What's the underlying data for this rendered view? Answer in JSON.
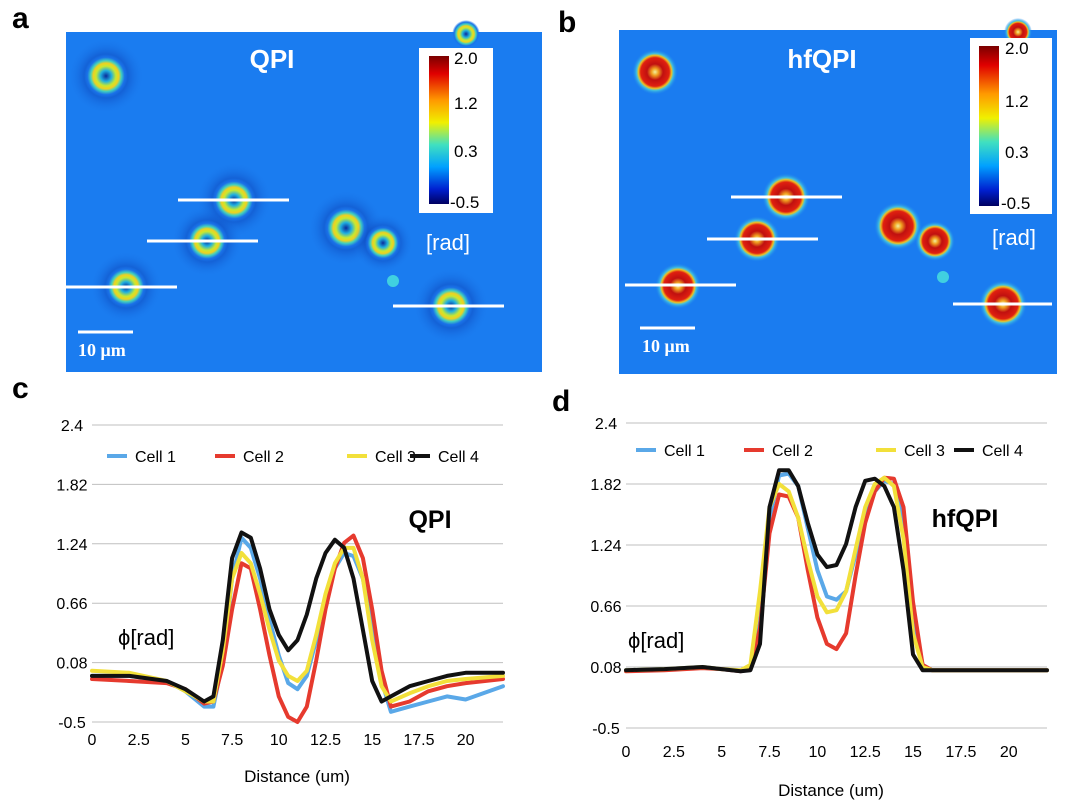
{
  "panels": {
    "a": {
      "letter": "a",
      "title": "QPI",
      "colorbar_ticks": [
        "2.0",
        "1.2",
        "0.3",
        "-0.5"
      ],
      "unit": "[rad]",
      "scalebar_label": "10 μm"
    },
    "b": {
      "letter": "b",
      "title": "hfQPI",
      "colorbar_ticks": [
        "2.0",
        "1.2",
        "0.3",
        "-0.5"
      ],
      "unit": "[rad]",
      "scalebar_label": "10 μm"
    },
    "c": {
      "letter": "c"
    },
    "d": {
      "letter": "d"
    }
  },
  "colors": {
    "background_blue": "#1a7cf0",
    "cell1": "#5aa8e8",
    "cell2": "#e63a2e",
    "cell3": "#f2e03a",
    "cell4": "#111111"
  },
  "chart_data": [
    {
      "type": "line",
      "panel": "c",
      "title": "QPI",
      "xlabel": "Distance (um)",
      "ylabel": "ϕ[rad]",
      "xlim": [
        0,
        22
      ],
      "ylim": [
        -0.5,
        2.4
      ],
      "xticks": [
        "0",
        "2.5",
        "5",
        "7.5",
        "10",
        "12.5",
        "15",
        "17.5",
        "20"
      ],
      "yticks": [
        "2.4",
        "1.82",
        "1.24",
        "0.66",
        "0.08",
        "-0.5"
      ],
      "grid": true,
      "legend": "top",
      "series": [
        {
          "name": "Cell 1",
          "x": [
            0,
            2,
            4,
            5,
            6,
            6.5,
            7,
            7.5,
            8,
            8.5,
            9,
            9.5,
            10,
            10.5,
            11,
            11.5,
            12,
            12.5,
            13,
            13.5,
            14,
            14.5,
            15,
            15.5,
            16,
            17,
            18,
            19,
            20,
            22
          ],
          "y": [
            -0.05,
            -0.05,
            -0.1,
            -0.2,
            -0.35,
            -0.35,
            0.1,
            0.9,
            1.3,
            1.2,
            0.9,
            0.5,
            0.15,
            -0.12,
            -0.18,
            -0.05,
            0.3,
            0.7,
            1.0,
            1.15,
            1.12,
            0.9,
            0.4,
            -0.1,
            -0.4,
            -0.35,
            -0.3,
            -0.25,
            -0.28,
            -0.15
          ]
        },
        {
          "name": "Cell 2",
          "x": [
            0,
            2,
            4,
            5,
            6,
            6.5,
            7,
            7.5,
            8,
            8.5,
            9,
            9.5,
            10,
            10.5,
            11,
            11.5,
            12,
            12.5,
            13,
            13.5,
            14,
            14.5,
            15,
            15.5,
            16,
            17,
            18,
            19,
            20,
            22
          ],
          "y": [
            -0.08,
            -0.1,
            -0.12,
            -0.18,
            -0.32,
            -0.3,
            0.05,
            0.6,
            1.05,
            1.0,
            0.6,
            0.15,
            -0.25,
            -0.45,
            -0.5,
            -0.35,
            0.1,
            0.6,
            1.0,
            1.25,
            1.32,
            1.1,
            0.6,
            0.0,
            -0.35,
            -0.3,
            -0.2,
            -0.15,
            -0.12,
            -0.08
          ]
        },
        {
          "name": "Cell 3",
          "x": [
            0,
            2,
            4,
            5,
            6,
            6.5,
            7,
            7.5,
            8,
            8.5,
            9,
            9.5,
            10,
            10.5,
            11,
            11.5,
            12,
            12.5,
            13,
            13.5,
            14,
            14.5,
            15,
            15.5,
            16,
            17,
            18,
            19,
            20,
            22
          ],
          "y": [
            0.0,
            -0.02,
            -0.1,
            -0.2,
            -0.3,
            -0.3,
            0.2,
            0.9,
            1.15,
            1.05,
            0.75,
            0.4,
            0.1,
            -0.05,
            -0.1,
            0.0,
            0.35,
            0.75,
            1.05,
            1.2,
            1.2,
            0.9,
            0.3,
            -0.15,
            -0.3,
            -0.22,
            -0.15,
            -0.1,
            -0.08,
            -0.05
          ]
        },
        {
          "name": "Cell 4",
          "x": [
            0,
            2,
            4,
            5,
            6,
            6.5,
            7,
            7.5,
            8,
            8.5,
            9,
            9.5,
            10,
            10.5,
            11,
            11.5,
            12,
            12.5,
            13,
            13.5,
            14,
            14.5,
            15,
            15.5,
            16,
            17,
            18,
            19,
            20,
            22
          ],
          "y": [
            -0.05,
            -0.05,
            -0.1,
            -0.18,
            -0.3,
            -0.25,
            0.3,
            1.1,
            1.35,
            1.3,
            1.0,
            0.6,
            0.35,
            0.2,
            0.3,
            0.55,
            0.9,
            1.15,
            1.28,
            1.2,
            0.9,
            0.4,
            -0.1,
            -0.3,
            -0.25,
            -0.15,
            -0.1,
            -0.05,
            -0.02,
            -0.02
          ]
        }
      ]
    },
    {
      "type": "line",
      "panel": "d",
      "title": "hfQPI",
      "xlabel": "Distance (um)",
      "ylabel": "ϕ[rad]",
      "xlim": [
        0,
        22
      ],
      "ylim": [
        -0.5,
        2.4
      ],
      "xticks": [
        "0",
        "2.5",
        "5",
        "7.5",
        "10",
        "12.5",
        "15",
        "17.5",
        "20"
      ],
      "yticks": [
        "2.4",
        "1.82",
        "1.24",
        "0.66",
        "0.08",
        "-0.5"
      ],
      "grid": true,
      "legend": "top",
      "series": [
        {
          "name": "Cell 1",
          "x": [
            0,
            2,
            4,
            5,
            6,
            6.5,
            7,
            7.5,
            8,
            8.5,
            9,
            9.5,
            10,
            10.5,
            11,
            11.5,
            12,
            12.5,
            13,
            13.5,
            14,
            14.5,
            15,
            15.5,
            16,
            17,
            18,
            20,
            22
          ],
          "y": [
            0.05,
            0.06,
            0.08,
            0.06,
            0.04,
            0.06,
            0.5,
            1.5,
            1.9,
            1.92,
            1.8,
            1.4,
            1.0,
            0.75,
            0.72,
            0.8,
            1.15,
            1.5,
            1.75,
            1.85,
            1.82,
            1.5,
            0.6,
            0.1,
            0.05,
            0.05,
            0.05,
            0.05,
            0.05
          ]
        },
        {
          "name": "Cell 2",
          "x": [
            0,
            2,
            4,
            5,
            6,
            6.5,
            7,
            7.5,
            8,
            8.5,
            9,
            9.5,
            10,
            10.5,
            11,
            11.5,
            12,
            12.5,
            13,
            13.5,
            14,
            14.5,
            15,
            15.5,
            16,
            17,
            18,
            20,
            22
          ],
          "y": [
            0.04,
            0.05,
            0.07,
            0.06,
            0.04,
            0.06,
            0.45,
            1.35,
            1.72,
            1.7,
            1.5,
            1.0,
            0.55,
            0.3,
            0.25,
            0.4,
            0.95,
            1.45,
            1.75,
            1.88,
            1.87,
            1.6,
            0.7,
            0.1,
            0.05,
            0.05,
            0.05,
            0.05,
            0.05
          ]
        },
        {
          "name": "Cell 3",
          "x": [
            0,
            2,
            4,
            5,
            6,
            6.5,
            7,
            7.5,
            8,
            8.5,
            9,
            9.5,
            10,
            10.5,
            11,
            11.5,
            12,
            12.5,
            13,
            13.5,
            14,
            14.5,
            15,
            15.5,
            16,
            17,
            18,
            20,
            22
          ],
          "y": [
            0.05,
            0.06,
            0.08,
            0.06,
            0.05,
            0.1,
            0.8,
            1.6,
            1.82,
            1.75,
            1.5,
            1.1,
            0.75,
            0.6,
            0.62,
            0.8,
            1.2,
            1.6,
            1.82,
            1.88,
            1.8,
            1.3,
            0.4,
            0.08,
            0.05,
            0.05,
            0.05,
            0.05,
            0.05
          ]
        },
        {
          "name": "Cell 4",
          "x": [
            0,
            2,
            4,
            5,
            6,
            6.5,
            7,
            7.5,
            8,
            8.5,
            9,
            9.5,
            10,
            10.5,
            11,
            11.5,
            12,
            12.5,
            13,
            13.5,
            14,
            14.5,
            15,
            15.5,
            16,
            17,
            18,
            20,
            22
          ],
          "y": [
            0.05,
            0.06,
            0.08,
            0.06,
            0.04,
            0.05,
            0.3,
            1.6,
            1.95,
            1.95,
            1.8,
            1.45,
            1.15,
            1.03,
            1.05,
            1.25,
            1.6,
            1.85,
            1.87,
            1.8,
            1.6,
            1.0,
            0.2,
            0.05,
            0.05,
            0.05,
            0.05,
            0.05,
            0.05
          ]
        }
      ]
    }
  ]
}
